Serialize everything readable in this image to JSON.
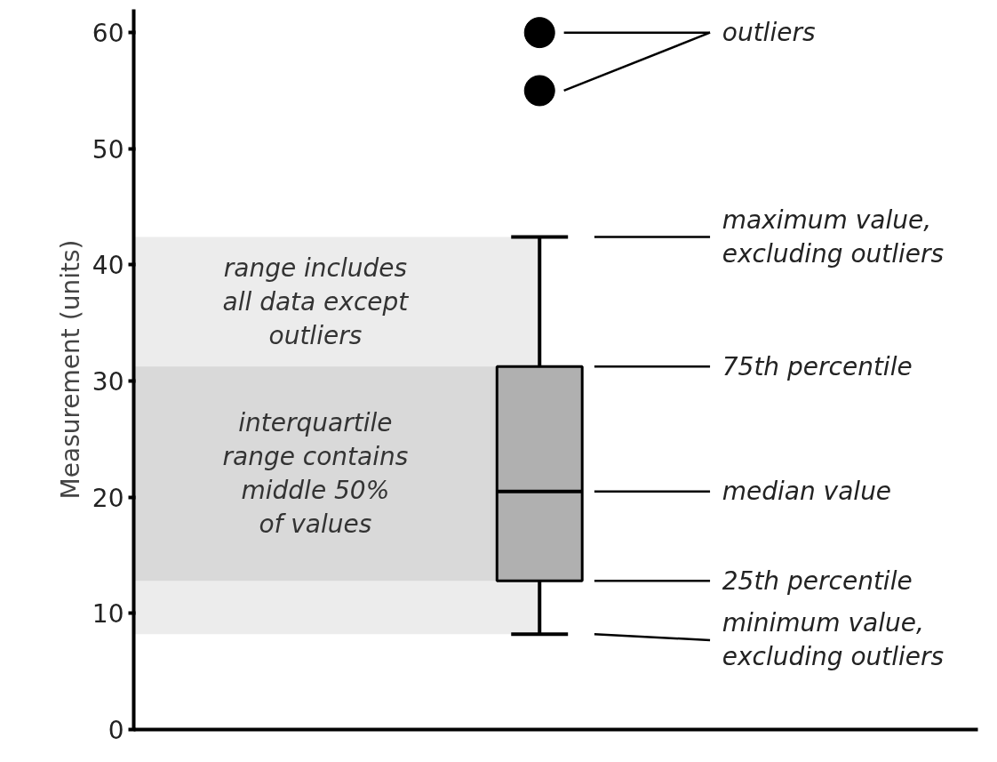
{
  "chart_data": {
    "type": "box",
    "ylabel": "Measurement (units)",
    "categories": [
      null
    ],
    "boxes": [
      {
        "low": 8.2,
        "q1": 12.8,
        "median": 20.5,
        "q3": 31.25,
        "high": 42.4,
        "outliers": [
          55,
          60
        ]
      }
    ],
    "color": "#b0b0b0",
    "ylim": [
      0,
      62
    ],
    "yticks": [
      0,
      10,
      20,
      30,
      40,
      50,
      60
    ],
    "grid": false,
    "tick_labels": "y",
    "bands": [
      {
        "axis": "y",
        "from": 8.2,
        "to": 42.4,
        "label": "range includes\nall data except\noutliers",
        "color": "#ececec"
      },
      {
        "axis": "y",
        "from": 12.8,
        "to": 31.25,
        "label": "interquartile\nrange contains\nmiddle 50%\nof values",
        "color": "#d9d9d9"
      }
    ],
    "annotations": [
      "outliers",
      "maximum value,\nexcluding outliers",
      "75th percentile",
      "median value",
      "25th percentile",
      "minimum value,\nexcluding outliers"
    ]
  }
}
